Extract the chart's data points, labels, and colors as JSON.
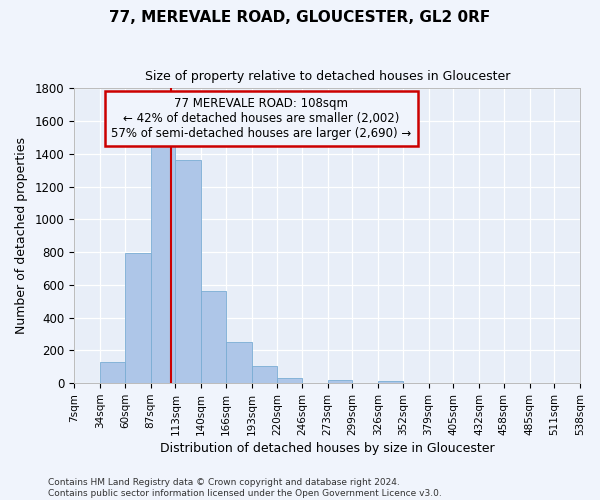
{
  "title": "77, MEREVALE ROAD, GLOUCESTER, GL2 0RF",
  "subtitle": "Size of property relative to detached houses in Gloucester",
  "xlabel": "Distribution of detached houses by size in Gloucester",
  "ylabel": "Number of detached properties",
  "bin_edges": [
    7,
    34,
    60,
    87,
    113,
    140,
    166,
    193,
    220,
    246,
    273,
    299,
    326,
    352,
    379,
    405,
    432,
    458,
    485,
    511,
    538
  ],
  "bin_labels": [
    "7sqm",
    "34sqm",
    "60sqm",
    "87sqm",
    "113sqm",
    "140sqm",
    "166sqm",
    "193sqm",
    "220sqm",
    "246sqm",
    "273sqm",
    "299sqm",
    "326sqm",
    "352sqm",
    "379sqm",
    "405sqm",
    "432sqm",
    "458sqm",
    "485sqm",
    "511sqm",
    "538sqm"
  ],
  "bar_heights": [
    0,
    130,
    795,
    1460,
    1360,
    565,
    250,
    105,
    30,
    0,
    20,
    0,
    15,
    0,
    0,
    0,
    0,
    0,
    0,
    0
  ],
  "bar_color": "#aec6e8",
  "bar_edgecolor": "#7aadd4",
  "vline_x": 108,
  "ylim": [
    0,
    1800
  ],
  "yticks": [
    0,
    200,
    400,
    600,
    800,
    1000,
    1200,
    1400,
    1600,
    1800
  ],
  "annotation_title": "77 MEREVALE ROAD: 108sqm",
  "annotation_line1": "← 42% of detached houses are smaller (2,002)",
  "annotation_line2": "57% of semi-detached houses are larger (2,690) →",
  "footer_line1": "Contains HM Land Registry data © Crown copyright and database right 2024.",
  "footer_line2": "Contains public sector information licensed under the Open Government Licence v3.0.",
  "vline_color": "#cc0000",
  "box_edgecolor": "#cc0000",
  "background_color": "#f0f4fc",
  "plot_bg_color": "#e8eef8",
  "grid_color": "#ffffff"
}
